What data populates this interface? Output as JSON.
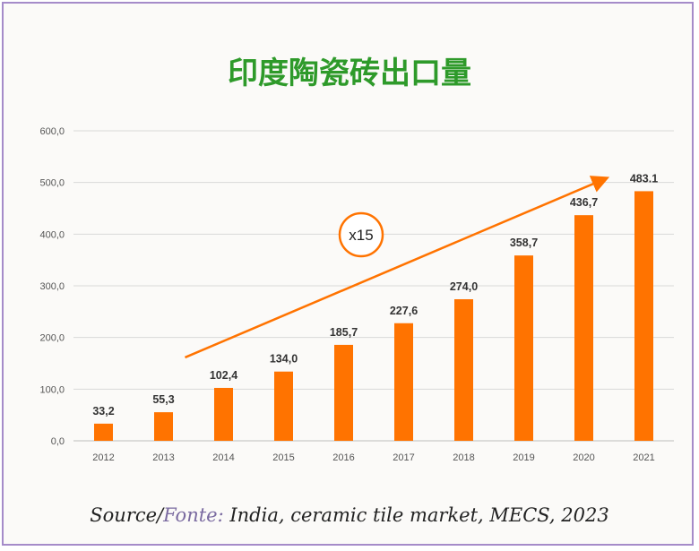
{
  "chart_data": {
    "type": "bar",
    "title": "印度陶瓷砖出口量",
    "categories": [
      "2012",
      "2013",
      "2014",
      "2015",
      "2016",
      "2017",
      "2018",
      "2019",
      "2020",
      "2021"
    ],
    "values": [
      33.2,
      55.3,
      102.4,
      134.0,
      185.7,
      227.6,
      274.0,
      358.7,
      436.7,
      483.1
    ],
    "data_labels": [
      "33,2",
      "55,3",
      "102,4",
      "134,0",
      "185,7",
      "227,6",
      "274,0",
      "358,7",
      "436,7",
      "483.1"
    ],
    "ylim": [
      0,
      600
    ],
    "yticks": [
      "0,0",
      "100,0",
      "200,0",
      "300,0",
      "400,0",
      "500,0",
      "600,0"
    ],
    "grid": true,
    "bar_color": "#ff7300",
    "annotation": {
      "text": "x15",
      "color": "#ff7300"
    }
  },
  "source": {
    "prefix": "Source/",
    "fonte": "Fonte:",
    "rest": " India, ceramic tile market, MECS, 2023"
  }
}
